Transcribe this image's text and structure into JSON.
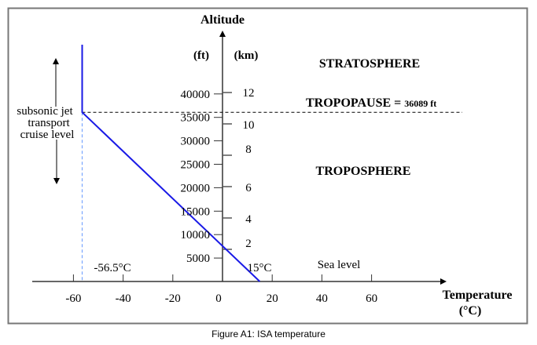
{
  "chart_data": {
    "type": "line",
    "title": "",
    "xlabel": "Temperature",
    "xlabel_unit": "(°C)",
    "ylabel": "Altitude",
    "y_units_left": "(ft)",
    "y_units_right": "(km)",
    "xlim": [
      -76,
      92
    ],
    "ylim_ft": [
      0,
      52000
    ],
    "x_ticks": [
      -60,
      -40,
      -20,
      0,
      20,
      40,
      60
    ],
    "x_tick_labels": [
      "-60",
      "-40",
      "-20",
      "0",
      "20",
      "40",
      "60"
    ],
    "y_ticks_ft": [
      5000,
      10000,
      15000,
      20000,
      25000,
      30000,
      35000,
      40000
    ],
    "y_tick_labels_ft": [
      "5000",
      "10000",
      "15000",
      "20000",
      "25000",
      "30000",
      "35000",
      "40000"
    ],
    "y_ticks_km": [
      2,
      4,
      6,
      8,
      10,
      12
    ],
    "y_tick_labels_km": [
      "2",
      "4",
      "6",
      "8",
      "10",
      "12"
    ],
    "grid": false,
    "series": [
      {
        "name": "ISA temperature",
        "color": "#1a1ae6",
        "points": [
          {
            "temp_c": 15,
            "alt_ft": 0
          },
          {
            "temp_c": -56.5,
            "alt_ft": 36089
          },
          {
            "temp_c": -56.5,
            "alt_ft": 50500
          }
        ]
      }
    ],
    "reference_lines": [
      {
        "type": "horizontal",
        "alt_ft": 36089,
        "style": "dashed",
        "color": "#000000"
      },
      {
        "type": "vertical",
        "temp_c": -56.5,
        "style": "dashed",
        "color": "#6699ff"
      }
    ],
    "annotations": {
      "stratosphere": "STRATOSPHERE",
      "tropopause_label": "TROPOPAUSE",
      "tropopause_eq": "=",
      "tropopause_value": "36089 ft",
      "troposphere": "TROPOSPHERE",
      "cruise_line1": "subsonic jet",
      "cruise_line2": "transport",
      "cruise_line3": "cruise level",
      "min_temp": "-56.5°C",
      "sea_temp": "15°C",
      "sea_level": "Sea level"
    }
  },
  "caption": "Figure A1: ISA temperature"
}
